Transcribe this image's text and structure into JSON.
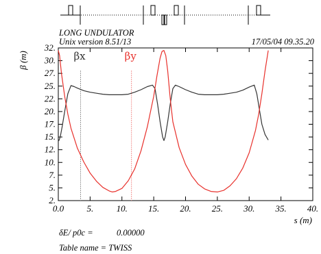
{
  "chart_data": {
    "type": "line",
    "title": "LONG UNDULATOR",
    "subtitle": "Unix version 8.51/13",
    "timestamp": "17/05/04  09.35.20",
    "xlabel": "s (m)",
    "ylabel": "β (m)",
    "xlim": [
      0,
      40
    ],
    "ylim": [
      2,
      32
    ],
    "xticks": [
      "0.0",
      "5.",
      "10.",
      "15.",
      "20.",
      "25.",
      "30.",
      "35.",
      "40."
    ],
    "yticks": [
      "2.",
      "5.",
      "7.",
      "10.",
      "12.",
      "15.",
      "17.",
      "20.",
      "22.",
      "25.",
      "27.",
      "30.",
      "32."
    ],
    "series": [
      {
        "name": "βx",
        "color": "#333333",
        "x": [
          0.0,
          0.1,
          0.3,
          0.6,
          1.0,
          1.5,
          2.0,
          2.5,
          3.0,
          4.0,
          5.0,
          6.0,
          7.0,
          8.0,
          9.0,
          10.0,
          11.0,
          12.0,
          13.0,
          14.0,
          14.8,
          15.2,
          15.6,
          16.0,
          16.4,
          16.6,
          16.8,
          17.2,
          17.6,
          18.0,
          18.4,
          19.0,
          20.0,
          21.0,
          22.0,
          23.0,
          24.0,
          25.0,
          26.0,
          27.0,
          28.0,
          29.0,
          30.0,
          30.8,
          31.2,
          31.6,
          32.0,
          32.5,
          33.0
        ],
        "values": [
          13.7,
          13.8,
          14.5,
          16.5,
          19.5,
          23.0,
          24.6,
          24.4,
          24.1,
          23.6,
          23.3,
          23.1,
          22.9,
          22.8,
          22.8,
          22.8,
          22.9,
          23.3,
          23.8,
          24.4,
          24.7,
          24.0,
          21.0,
          17.5,
          14.5,
          13.8,
          14.5,
          17.5,
          21.0,
          24.0,
          24.7,
          24.4,
          23.8,
          23.3,
          22.9,
          22.8,
          22.8,
          22.8,
          22.9,
          23.1,
          23.3,
          23.7,
          24.3,
          24.7,
          23.0,
          20.0,
          17.0,
          15.0,
          13.9
        ]
      },
      {
        "name": "βy",
        "color": "#e8302b",
        "x": [
          0.0,
          0.2,
          0.5,
          1.0,
          1.5,
          2.0,
          3.0,
          4.0,
          5.0,
          6.0,
          7.0,
          8.0,
          8.5,
          9.0,
          10.0,
          11.0,
          12.0,
          13.0,
          14.0,
          15.0,
          15.5,
          16.0,
          16.3,
          16.6,
          16.9,
          17.2,
          17.6,
          18.0,
          19.0,
          20.0,
          21.0,
          22.0,
          23.0,
          24.0,
          25.0,
          26.0,
          27.0,
          28.0,
          29.0,
          30.0,
          31.0,
          31.5,
          32.0,
          32.5,
          33.0
        ],
        "values": [
          31.5,
          30.5,
          27.0,
          22.5,
          19.0,
          16.2,
          12.3,
          9.6,
          7.4,
          5.8,
          4.6,
          3.9,
          3.7,
          3.8,
          4.4,
          5.9,
          8.2,
          11.8,
          16.5,
          22.5,
          26.5,
          30.0,
          31.3,
          31.5,
          30.5,
          27.5,
          22.0,
          17.5,
          12.4,
          9.1,
          6.8,
          5.2,
          4.3,
          3.8,
          3.7,
          4.0,
          4.9,
          6.3,
          8.4,
          11.4,
          15.8,
          19.0,
          23.0,
          27.5,
          31.5
        ]
      }
    ],
    "markers": [
      {
        "label": "βx",
        "x": 3.5
      },
      {
        "label": "βy",
        "x": 11.5
      }
    ],
    "lattice_label": "|",
    "footer": {
      "param_label": "δE/ p0c  =",
      "param_value": "0.00000",
      "table_label": "Table name = TWISS"
    }
  }
}
